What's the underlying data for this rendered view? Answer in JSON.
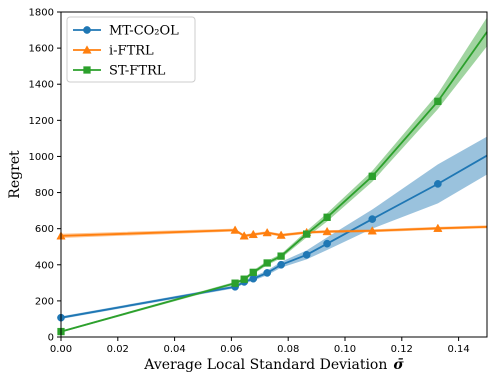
{
  "chart_data": {
    "type": "line",
    "title": "",
    "xlabel": "Average Local Standard Deviation",
    "xlabel_symbol": "σ̄",
    "ylabel": "Regret",
    "xlim": [
      0.0,
      0.15
    ],
    "ylim": [
      0,
      1800
    ],
    "x_ticks": [
      "0.00",
      "0.02",
      "0.04",
      "0.06",
      "0.08",
      "0.10",
      "0.12",
      "0.14"
    ],
    "y_ticks": [
      "0",
      "200",
      "400",
      "600",
      "800",
      "1000",
      "1200",
      "1400",
      "1600",
      "1800"
    ],
    "grid": false,
    "legend_position": "top-left",
    "series": [
      {
        "name": "MT-CO₂OL",
        "color": "#1f77b4",
        "marker": "circle",
        "x": [
          0.0,
          0.0613,
          0.0645,
          0.0677,
          0.0726,
          0.0775,
          0.0865,
          0.0937,
          0.1096,
          0.1327,
          0.15
        ],
        "y": [
          107,
          278,
          305,
          323,
          355,
          400,
          455,
          517,
          653,
          848,
          1005
        ],
        "band_lower": [
          100,
          270,
          295,
          312,
          342,
          384,
          430,
          482,
          600,
          740,
          900
        ],
        "band_upper": [
          114,
          286,
          315,
          334,
          368,
          416,
          480,
          552,
          706,
          956,
          1110
        ]
      },
      {
        "name": "i-FTRL",
        "color": "#ff7f0e",
        "marker": "triangle",
        "x": [
          0.0,
          0.0613,
          0.0645,
          0.0677,
          0.0726,
          0.0775,
          0.0865,
          0.0937,
          0.1096,
          0.1327,
          0.15
        ],
        "y": [
          560,
          592,
          560,
          568,
          578,
          564,
          579,
          584,
          588,
          602,
          610
        ],
        "band_lower": [
          548,
          584,
          552,
          560,
          570,
          556,
          571,
          576,
          580,
          594,
          602
        ],
        "band_upper": [
          572,
          600,
          568,
          576,
          586,
          572,
          587,
          592,
          596,
          610,
          618
        ]
      },
      {
        "name": "ST-FTRL",
        "color": "#2ca02c",
        "marker": "square",
        "x": [
          0.0,
          0.0613,
          0.0645,
          0.0677,
          0.0726,
          0.0775,
          0.0865,
          0.0937,
          0.1096,
          0.1327,
          0.15
        ],
        "y": [
          30,
          298,
          320,
          358,
          410,
          448,
          570,
          663,
          890,
          1305,
          1690
        ],
        "band_lower": [
          25,
          290,
          312,
          348,
          398,
          436,
          552,
          640,
          860,
          1262,
          1610
        ],
        "band_upper": [
          35,
          306,
          328,
          368,
          422,
          460,
          588,
          686,
          920,
          1348,
          1770
        ]
      }
    ]
  }
}
